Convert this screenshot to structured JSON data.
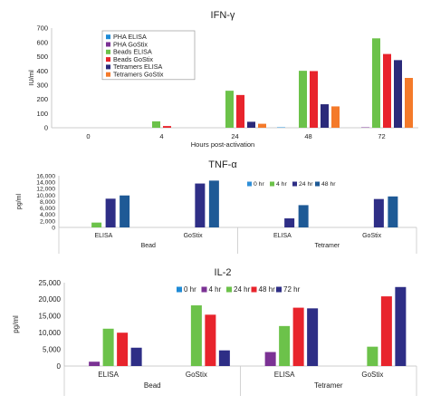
{
  "chart_data": [
    {
      "type": "bar",
      "title": "IFN-γ",
      "xlabel": "Hours post-activation",
      "ylabel": "IU/ml",
      "ylim": [
        0,
        700
      ],
      "yticks": [
        "0",
        "100",
        "200",
        "300",
        "400",
        "500",
        "600",
        "700"
      ],
      "categories": [
        "0",
        "4",
        "24",
        "48",
        "72"
      ],
      "grid": false,
      "legend_position": "top-left",
      "series": [
        {
          "name": "PHA ELISA",
          "color": "#1f8bd6",
          "values": [
            0,
            0,
            0,
            3,
            0
          ]
        },
        {
          "name": "PHA GoStix",
          "color": "#7b3294",
          "values": [
            0,
            0,
            0,
            0,
            3
          ]
        },
        {
          "name": "Beads ELISA",
          "color": "#6cc24a",
          "values": [
            0,
            45,
            260,
            400,
            628
          ]
        },
        {
          "name": "Beads GoStix",
          "color": "#e8242c",
          "values": [
            0,
            12,
            230,
            398,
            518
          ]
        },
        {
          "name": "Tetramers ELISA",
          "color": "#2b2a7a",
          "values": [
            0,
            0,
            42,
            165,
            475
          ]
        },
        {
          "name": "Tetramers GoStix",
          "color": "#f47a2a",
          "values": [
            0,
            0,
            28,
            150,
            350
          ]
        }
      ]
    },
    {
      "type": "bar",
      "title": "TNF-α",
      "ylabel": "pg/ml",
      "ylim": [
        0,
        16000
      ],
      "yticks": [
        "0",
        "2,000",
        "4,000",
        "6,000",
        "8,000",
        "10,000",
        "12,000",
        "14,000",
        "16,000"
      ],
      "categories": [
        "ELISA",
        "GoStix",
        "ELISA",
        "GoStix"
      ],
      "groups": [
        "Bead",
        "Tetramer"
      ],
      "grid": false,
      "legend_position": "top-right",
      "series": [
        {
          "name": "0 hr",
          "color": "#2f8fd8",
          "values": [
            0,
            0,
            0,
            0
          ]
        },
        {
          "name": "4 hr",
          "color": "#6cc24a",
          "values": [
            1500,
            0,
            0,
            0
          ]
        },
        {
          "name": "24 hr",
          "color": "#2e2e86",
          "values": [
            8900,
            13600,
            2800,
            8800
          ]
        },
        {
          "name": "48 hr",
          "color": "#1e5a96",
          "values": [
            9900,
            14500,
            6900,
            9600
          ]
        }
      ]
    },
    {
      "type": "bar",
      "title": "IL-2",
      "ylabel": "pg/ml",
      "ylim": [
        0,
        25000
      ],
      "yticks": [
        "0",
        "5,000",
        "10,000",
        "15,000",
        "20,000",
        "25,000"
      ],
      "categories": [
        "ELISA",
        "GoStix",
        "ELISA",
        "GoStix"
      ],
      "groups": [
        "Bead",
        "Tetramer"
      ],
      "grid": false,
      "legend_position": "top-right",
      "series": [
        {
          "name": "0 hr",
          "color": "#1f8bd6",
          "values": [
            0,
            0,
            0,
            0
          ]
        },
        {
          "name": "4 hr",
          "color": "#7b3294",
          "values": [
            1300,
            0,
            4200,
            0
          ]
        },
        {
          "name": "24 hr",
          "color": "#6cc24a",
          "values": [
            11200,
            18200,
            12000,
            5800
          ]
        },
        {
          "name": "48 hr",
          "color": "#e8242c",
          "values": [
            10000,
            15400,
            17500,
            20900
          ]
        },
        {
          "name": "72 hr",
          "color": "#2e2e86",
          "values": [
            5500,
            4700,
            17300,
            23700
          ]
        }
      ]
    }
  ]
}
